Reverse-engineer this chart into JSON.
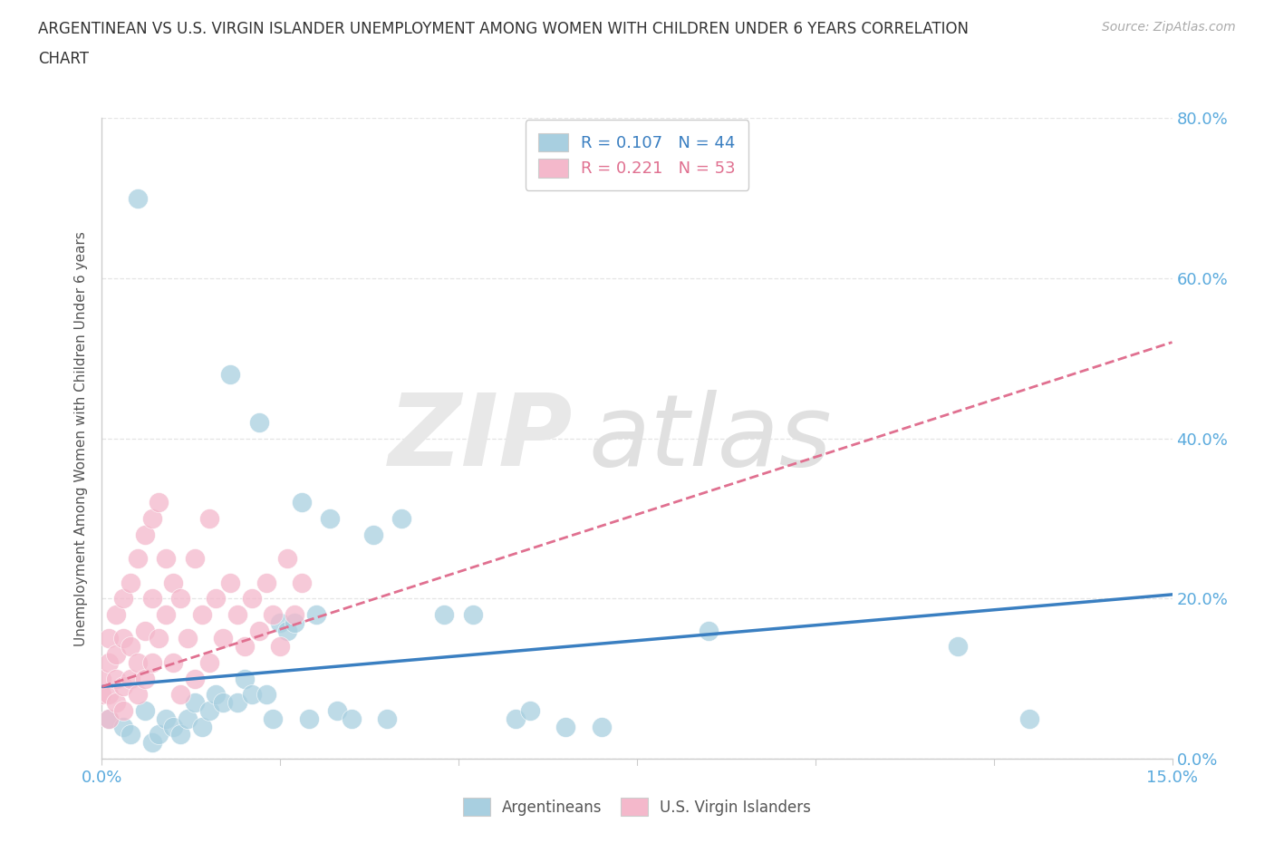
{
  "title_line1": "ARGENTINEAN VS U.S. VIRGIN ISLANDER UNEMPLOYMENT AMONG WOMEN WITH CHILDREN UNDER 6 YEARS CORRELATION",
  "title_line2": "CHART",
  "source": "Source: ZipAtlas.com",
  "ylabel": "Unemployment Among Women with Children Under 6 years",
  "xlim": [
    0.0,
    0.15
  ],
  "ylim": [
    0.0,
    0.8
  ],
  "blue_color": "#a8cfe0",
  "pink_color": "#f4b8cb",
  "blue_line_color": "#3a7fc1",
  "pink_line_color": "#e07090",
  "blue_r": 0.107,
  "blue_n": 44,
  "pink_r": 0.221,
  "pink_n": 53,
  "background_color": "#ffffff",
  "grid_color": "#e5e5e5",
  "blue_scatter_x": [
    0.005,
    0.018,
    0.022,
    0.028,
    0.032,
    0.038,
    0.042,
    0.048,
    0.052,
    0.058,
    0.001,
    0.003,
    0.004,
    0.006,
    0.007,
    0.008,
    0.009,
    0.01,
    0.011,
    0.012,
    0.013,
    0.014,
    0.015,
    0.016,
    0.017,
    0.019,
    0.02,
    0.021,
    0.023,
    0.024,
    0.025,
    0.026,
    0.027,
    0.029,
    0.03,
    0.033,
    0.035,
    0.04,
    0.06,
    0.065,
    0.07,
    0.085,
    0.12,
    0.13
  ],
  "blue_scatter_y": [
    0.7,
    0.48,
    0.42,
    0.32,
    0.3,
    0.28,
    0.3,
    0.18,
    0.18,
    0.05,
    0.05,
    0.04,
    0.03,
    0.06,
    0.02,
    0.03,
    0.05,
    0.04,
    0.03,
    0.05,
    0.07,
    0.04,
    0.06,
    0.08,
    0.07,
    0.07,
    0.1,
    0.08,
    0.08,
    0.05,
    0.17,
    0.16,
    0.17,
    0.05,
    0.18,
    0.06,
    0.05,
    0.05,
    0.06,
    0.04,
    0.04,
    0.16,
    0.14,
    0.05
  ],
  "pink_scatter_x": [
    0.0,
    0.0,
    0.001,
    0.001,
    0.001,
    0.001,
    0.002,
    0.002,
    0.002,
    0.002,
    0.003,
    0.003,
    0.003,
    0.003,
    0.004,
    0.004,
    0.004,
    0.005,
    0.005,
    0.005,
    0.006,
    0.006,
    0.006,
    0.007,
    0.007,
    0.007,
    0.008,
    0.008,
    0.009,
    0.009,
    0.01,
    0.01,
    0.011,
    0.011,
    0.012,
    0.013,
    0.013,
    0.014,
    0.015,
    0.015,
    0.016,
    0.017,
    0.018,
    0.019,
    0.02,
    0.021,
    0.022,
    0.023,
    0.024,
    0.025,
    0.026,
    0.027,
    0.028
  ],
  "pink_scatter_y": [
    0.08,
    0.1,
    0.05,
    0.12,
    0.08,
    0.15,
    0.07,
    0.1,
    0.13,
    0.18,
    0.06,
    0.09,
    0.15,
    0.2,
    0.1,
    0.14,
    0.22,
    0.08,
    0.12,
    0.25,
    0.1,
    0.16,
    0.28,
    0.12,
    0.2,
    0.3,
    0.15,
    0.32,
    0.18,
    0.25,
    0.12,
    0.22,
    0.08,
    0.2,
    0.15,
    0.1,
    0.25,
    0.18,
    0.12,
    0.3,
    0.2,
    0.15,
    0.22,
    0.18,
    0.14,
    0.2,
    0.16,
    0.22,
    0.18,
    0.14,
    0.25,
    0.18,
    0.22
  ],
  "blue_trend_x0": 0.0,
  "blue_trend_y0": 0.09,
  "blue_trend_x1": 0.15,
  "blue_trend_y1": 0.205,
  "pink_trend_x0": 0.0,
  "pink_trend_y0": 0.09,
  "pink_trend_x1": 0.15,
  "pink_trend_y1": 0.52
}
